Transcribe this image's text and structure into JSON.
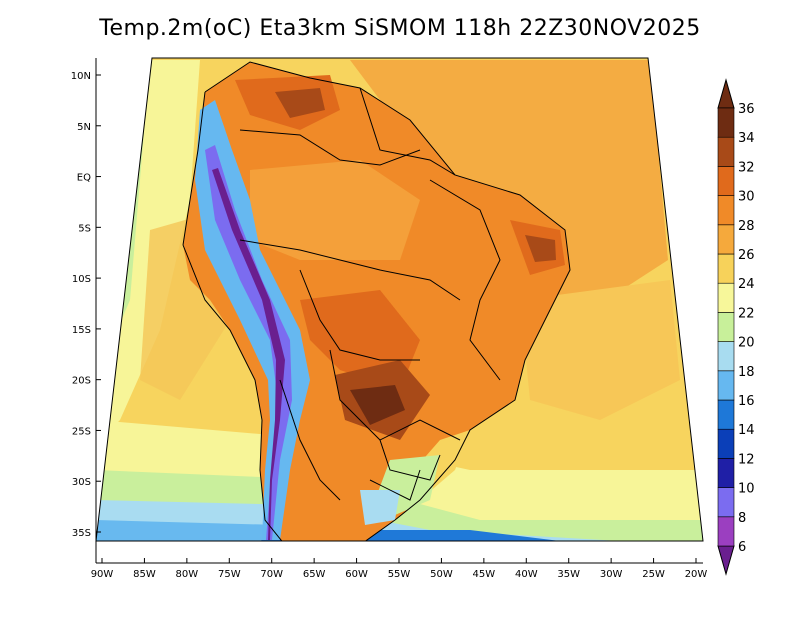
{
  "title": "Temp.2m(oC) Eta3km SiSMOM 118h 22Z30NOV2025",
  "chart_data": {
    "type": "heatmap",
    "variable": "Temp.2m(oC)",
    "model": "Eta3km SiSMOM",
    "forecast_hour": "118h",
    "valid_time": "22Z30NOV2025",
    "lon_range": [
      -91,
      -20
    ],
    "lat_range": [
      -38,
      11
    ],
    "lon_ticks": [
      "90W",
      "85W",
      "80W",
      "75W",
      "70W",
      "65W",
      "60W",
      "55W",
      "50W",
      "45W",
      "40W",
      "35W",
      "30W",
      "25W",
      "20W"
    ],
    "lat_ticks": [
      "10N",
      "5N",
      "EQ",
      "5S",
      "10S",
      "15S",
      "20S",
      "25S",
      "30S",
      "35S"
    ],
    "colorbar": {
      "levels": [
        6,
        8,
        10,
        12,
        14,
        16,
        18,
        20,
        22,
        24,
        26,
        28,
        30,
        32,
        34,
        36
      ],
      "labels": [
        "6",
        "8",
        "10",
        "12",
        "14",
        "16",
        "18",
        "20",
        "22",
        "24",
        "26",
        "28",
        "30",
        "32",
        "34",
        "36"
      ],
      "colors": [
        "#6a1f8f",
        "#9b3fc0",
        "#7b6cf0",
        "#1f1fa6",
        "#0b3fb8",
        "#1e78d8",
        "#66b8f0",
        "#a8dcf0",
        "#c8f09a",
        "#f7f79a",
        "#f7d25a",
        "#f5a93c",
        "#f08a28",
        "#e06a1c",
        "#a84a18",
        "#6e2c12"
      ]
    }
  }
}
